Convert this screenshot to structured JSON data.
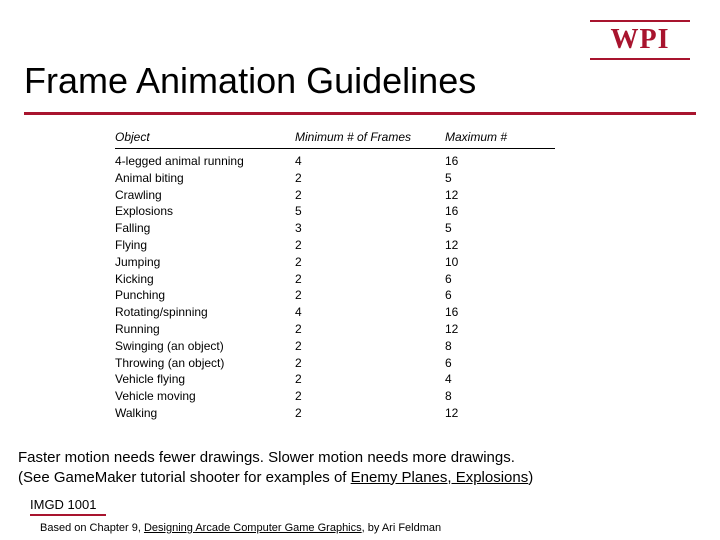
{
  "logo": {
    "text": "WPI"
  },
  "title": "Frame Animation Guidelines",
  "table": {
    "headers": {
      "object": "Object",
      "min": "Minimum # of Frames",
      "max": "Maximum #"
    },
    "rows": [
      {
        "object": "4-legged animal running",
        "min": "4",
        "max": "16"
      },
      {
        "object": "Animal biting",
        "min": "2",
        "max": "5"
      },
      {
        "object": "Crawling",
        "min": "2",
        "max": "12"
      },
      {
        "object": "Explosions",
        "min": "5",
        "max": "16"
      },
      {
        "object": "Falling",
        "min": "3",
        "max": "5"
      },
      {
        "object": "Flying",
        "min": "2",
        "max": "12"
      },
      {
        "object": "Jumping",
        "min": "2",
        "max": "10"
      },
      {
        "object": "Kicking",
        "min": "2",
        "max": "6"
      },
      {
        "object": "Punching",
        "min": "2",
        "max": "6"
      },
      {
        "object": "Rotating/spinning",
        "min": "4",
        "max": "16"
      },
      {
        "object": "Running",
        "min": "2",
        "max": "12"
      },
      {
        "object": "Swinging (an object)",
        "min": "2",
        "max": "8"
      },
      {
        "object": "Throwing (an object)",
        "min": "2",
        "max": "6"
      },
      {
        "object": "Vehicle flying",
        "min": "2",
        "max": "4"
      },
      {
        "object": "Vehicle moving",
        "min": "2",
        "max": "8"
      },
      {
        "object": "Walking",
        "min": "2",
        "max": "12"
      }
    ]
  },
  "caption": {
    "line1": "Faster motion needs fewer drawings.  Slower motion needs more drawings.",
    "line2_pre": "(See GameMaker tutorial shooter for examples of ",
    "line2_underlined": "Enemy Planes, Explosions",
    "line2_post": ")"
  },
  "footer": {
    "course": "IMGD 1001",
    "credit_pre": "Based on Chapter 9, ",
    "credit_title": "Designing Arcade Computer Game Graphics",
    "credit_post": ", by Ari Feldman"
  },
  "colors": {
    "accent": "#a8142e",
    "text": "#000000",
    "background": "#ffffff"
  }
}
